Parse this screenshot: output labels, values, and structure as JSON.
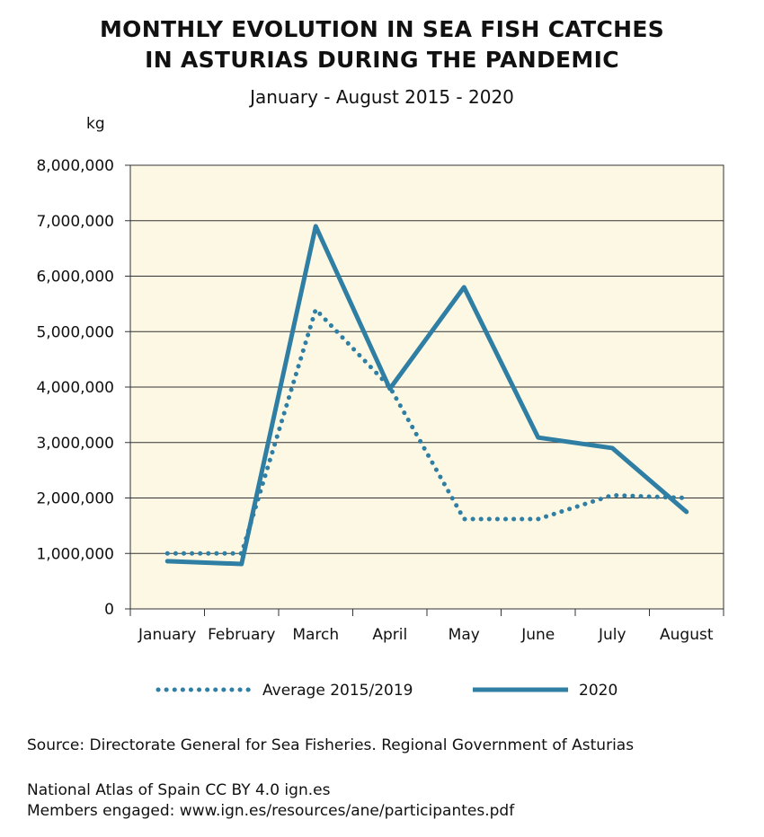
{
  "chart_data": {
    "type": "line",
    "title_line1": "MONTHLY EVOLUTION IN SEA FISH CATCHES",
    "title_line2": "IN ASTURIAS DURING THE PANDEMIC",
    "subtitle": "January - August 2015 - 2020",
    "ylabel": "kg",
    "xlabel": "",
    "ylim": [
      0,
      8000000
    ],
    "yticks": [
      "0",
      "1,000,000",
      "2,000,000",
      "3,000,000",
      "4,000,000",
      "5,000,000",
      "6,000,000",
      "7,000,000",
      "8,000,000"
    ],
    "categories": [
      "January",
      "February",
      "March",
      "April",
      "May",
      "June",
      "July",
      "August"
    ],
    "grid": true,
    "legend_position": "bottom",
    "series": [
      {
        "name": "Average 2015/2019",
        "style": "dotted",
        "color": "#2f7ea3",
        "values": [
          1000000,
          1000000,
          5400000,
          4000000,
          1620000,
          1620000,
          2050000,
          2000000
        ]
      },
      {
        "name": "2020",
        "style": "solid",
        "color": "#2f7ea3",
        "values": [
          860000,
          810000,
          6900000,
          3970000,
          5800000,
          3090000,
          2900000,
          1750000
        ]
      }
    ]
  },
  "footer": {
    "source": "Source: Directorate General for Sea Fisheries. Regional Government of Asturias",
    "atlas": "National Atlas of Spain CC BY 4.0 ign.es",
    "members": "Members engaged: www.ign.es/resources/ane/participantes.pdf"
  },
  "colors": {
    "plot_bg": "#fdf8e4",
    "line": "#2f7ea3"
  }
}
